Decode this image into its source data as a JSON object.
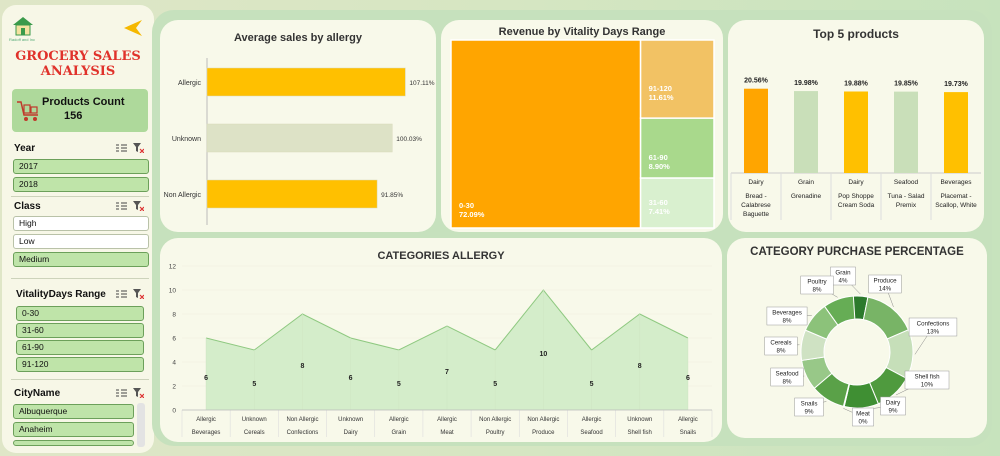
{
  "sidebar": {
    "logo_caption": "Radoff and Inc",
    "title_line1": "GROCERY SALES",
    "title_line2": "ANALYSIS",
    "products_count_label": "Products Count",
    "products_count_value": "156",
    "year": {
      "label": "Year",
      "items": [
        "2017",
        "2018"
      ],
      "selected": [
        true,
        true
      ]
    },
    "class": {
      "label": "Class",
      "items": [
        "High",
        "Low",
        "Medium"
      ],
      "selected": [
        false,
        false,
        true
      ]
    },
    "vitality": {
      "label": "VitalityDays Range",
      "items": [
        "0-30",
        "31-60",
        "61-90",
        "91-120"
      ],
      "selected": [
        true,
        true,
        true,
        true
      ]
    },
    "city": {
      "label": "CityName",
      "items": [
        "Albuquerque",
        "Anaheim"
      ],
      "selected": [
        true,
        true
      ]
    }
  },
  "avg_sales": {
    "title": "Average sales by allergy",
    "chart_data": {
      "type": "bar",
      "orientation": "horizontal",
      "categories": [
        "Allergic",
        "Unknown",
        "Non Allergic"
      ],
      "values": [
        107.11,
        100.03,
        91.85
      ],
      "data_labels": [
        "107.11%",
        "100.03%",
        "91.85%"
      ],
      "colors": [
        "#ffc000",
        "#dde2c6",
        "#ffc000"
      ]
    }
  },
  "treemap": {
    "title": "Revenue by Vitality Days Range",
    "chart_data": {
      "type": "treemap",
      "categories": [
        "0-30",
        "91-120",
        "61-90",
        "31-60"
      ],
      "values": [
        72.09,
        11.61,
        8.9,
        7.41
      ],
      "data_labels": [
        "72.09%",
        "11.61%",
        "8.90%",
        "7.41%"
      ],
      "colors": [
        "#ffa500",
        "#f2c264",
        "#a9d98c",
        "#d9f0cf"
      ]
    }
  },
  "top5": {
    "title": "Top 5 products",
    "chart_data": {
      "type": "bar",
      "categories": [
        "Bread - Calabrese Baguette",
        "Grenadine",
        "Pop Shoppe Cream Soda",
        "Tuna - Salad Premix",
        "Placemat - Scallop, White"
      ],
      "groups": [
        "Dairy",
        "Grain",
        "Dairy",
        "Seafood",
        "Beverages"
      ],
      "values": [
        20.56,
        19.98,
        19.88,
        19.85,
        19.73
      ],
      "data_labels": [
        "20.56%",
        "19.98%",
        "19.88%",
        "19.85%",
        "19.73%"
      ],
      "colors": [
        "#ffa500",
        "#c9dfb9",
        "#ffc000",
        "#c9dfb9",
        "#ffc000"
      ]
    },
    "label_lines": [
      [
        "Bread -",
        "Calabrese",
        "Baguette"
      ],
      [
        "Grenadine"
      ],
      [
        "Pop Shoppe",
        "Cream Soda"
      ],
      [
        "Tuna - Salad",
        "Premix"
      ],
      [
        "Placemat -",
        "Scallop, White"
      ]
    ]
  },
  "categories_allergy": {
    "title": "CATEGORIES ALLERGY",
    "chart_data": {
      "type": "area",
      "x": [
        [
          "Allergic",
          "Beverages"
        ],
        [
          "Unknown",
          "Cereals"
        ],
        [
          "Non Allergic",
          "Confections"
        ],
        [
          "Unknown",
          "Dairy"
        ],
        [
          "Allergic",
          "Grain"
        ],
        [
          "Allergic",
          "Meat"
        ],
        [
          "Non Allergic",
          "Poultry"
        ],
        [
          "Non Allergic",
          "Produce"
        ],
        [
          "Allergic",
          "Seafood"
        ],
        [
          "Unknown",
          "Shell fish"
        ],
        [
          "Allergic",
          "Snails"
        ]
      ],
      "values": [
        6,
        5,
        8,
        6,
        5,
        7,
        5,
        10,
        5,
        8,
        6
      ],
      "ylim": [
        0,
        12
      ],
      "yticks": [
        "0",
        "2",
        "4",
        "6",
        "8",
        "10",
        "12"
      ],
      "color": "#d4edca",
      "line_color": "#8fc981"
    }
  },
  "category_purchase": {
    "title": "CATEGORY PURCHASE PERCENTAGE",
    "chart_data": {
      "type": "pie",
      "variant": "doughnut",
      "categories": [
        "Grain",
        "Produce",
        "Confections",
        "Shell fish",
        "Dairy",
        "Meat",
        "Snails",
        "Seafood",
        "Cereals",
        "Beverages",
        "Poultry"
      ],
      "values": [
        4,
        14,
        13,
        10,
        9,
        0,
        9,
        8,
        8,
        8,
        8
      ],
      "data_labels": [
        "4%",
        "14%",
        "13%",
        "10%",
        "9%",
        "0%",
        "9%",
        "8%",
        "8%",
        "8%",
        "8%"
      ],
      "colors": [
        "#2c7a2c",
        "#78b466",
        "#c6dfb9",
        "#4f9a3e",
        "#3f8f33",
        "#dfead6",
        "#5aa148",
        "#98c888",
        "#cfe2c3",
        "#8cc27a",
        "#66ad55"
      ]
    }
  }
}
